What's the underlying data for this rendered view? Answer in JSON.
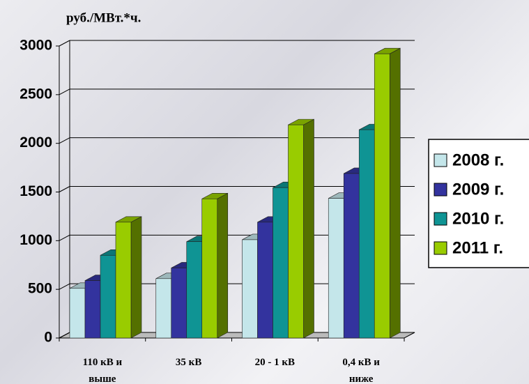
{
  "chart_data": {
    "type": "bar3d",
    "y_label": "руб./МВт.*ч.",
    "categories": [
      "110 кВ и выше",
      "35 кВ",
      "20 - 1 кВ",
      "0,4 кВ и ниже"
    ],
    "series": [
      {
        "name": "2008 г.",
        "color": "#c4e6ea",
        "values": [
          510,
          610,
          1010,
          1435
        ]
      },
      {
        "name": "2009 г.",
        "color": "#33339e",
        "values": [
          590,
          720,
          1190,
          1690
        ]
      },
      {
        "name": "2010 г.",
        "color": "#0f9494",
        "values": [
          850,
          990,
          1545,
          2140
        ]
      },
      {
        "name": "2011 г.",
        "color": "#99cc00",
        "values": [
          1190,
          1430,
          2190,
          2920
        ]
      }
    ],
    "ylim": [
      0,
      3000
    ],
    "yticks": [
      0,
      500,
      1000,
      1500,
      2000,
      2500,
      3000
    ],
    "grid": true,
    "legend": "right"
  }
}
